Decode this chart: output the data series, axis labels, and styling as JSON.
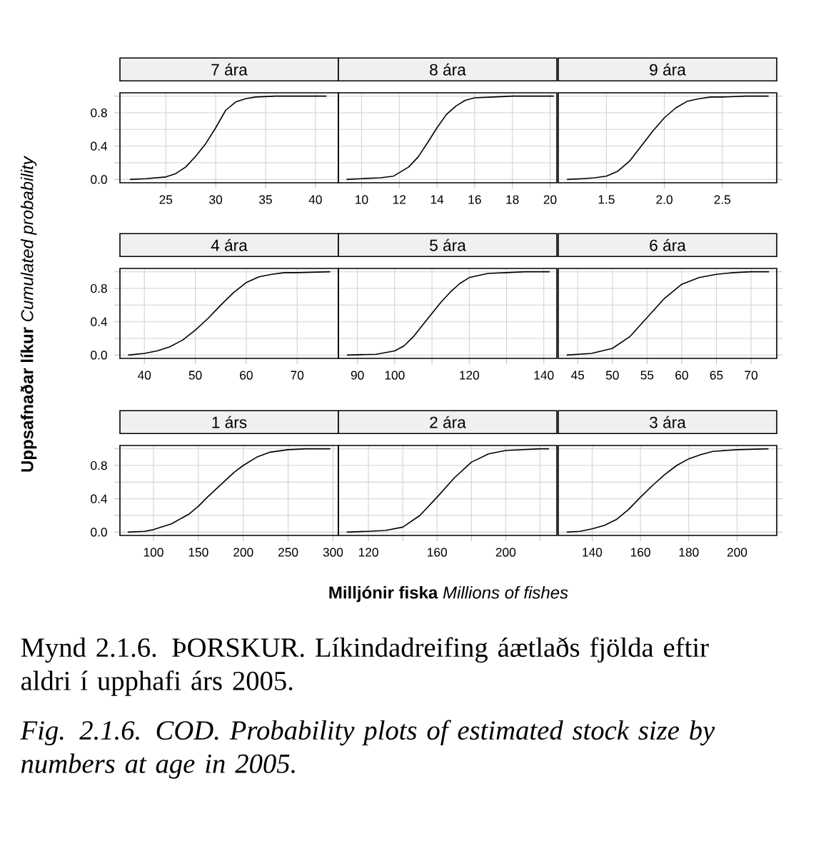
{
  "chart_data": [
    {
      "type": "line",
      "title": "7 ára",
      "xlim": [
        20.4,
        42.3
      ],
      "xticks": [
        25,
        30,
        35,
        40
      ],
      "ylim": [
        -0.04,
        1.04
      ],
      "yticks": [
        {
          "value": 0,
          "label": "0.0"
        },
        {
          "value": 0.2,
          "label": null
        },
        {
          "value": 0.4,
          "label": "0.4"
        },
        {
          "value": 0.6,
          "label": null
        },
        {
          "value": 0.8,
          "label": "0.8"
        },
        {
          "value": 1.0,
          "label": null
        }
      ],
      "grid": true,
      "series": [
        {
          "color": "#000000",
          "x": [
            21.4,
            23,
            25,
            26,
            27,
            28,
            29,
            30,
            31,
            32,
            33,
            34,
            36,
            38,
            41.1
          ],
          "values": [
            0,
            0.01,
            0.03,
            0.07,
            0.15,
            0.28,
            0.43,
            0.62,
            0.83,
            0.93,
            0.97,
            0.99,
            1,
            1,
            1
          ]
        }
      ]
    },
    {
      "type": "line",
      "title": "8 ára",
      "xlim": [
        8.77,
        20.36
      ],
      "xticks": [
        10,
        12,
        14,
        16,
        18,
        20
      ],
      "ylim": [
        -0.04,
        1.04
      ],
      "yticks": [
        {
          "value": 0,
          "label": null
        },
        {
          "value": 0.2,
          "label": null
        },
        {
          "value": 0.4,
          "label": null
        },
        {
          "value": 0.6,
          "label": null
        },
        {
          "value": 0.8,
          "label": null
        },
        {
          "value": 1.0,
          "label": null
        }
      ],
      "grid": true,
      "tick_labels": "x",
      "series": [
        {
          "color": "#000000",
          "x": [
            9.2,
            10,
            11,
            11.7,
            12.5,
            13,
            13.5,
            14,
            14.5,
            15,
            15.5,
            16,
            17,
            18,
            20.2
          ],
          "values": [
            0,
            0.01,
            0.02,
            0.04,
            0.15,
            0.27,
            0.44,
            0.62,
            0.78,
            0.88,
            0.95,
            0.98,
            0.99,
            1,
            1
          ]
        }
      ]
    },
    {
      "type": "line",
      "title": "9 ára",
      "xlim": [
        1.085,
        2.97
      ],
      "xticks": [
        1.5,
        {
          "value": 2,
          "label": "2.0"
        },
        2.5
      ],
      "ylim": [
        -0.04,
        1.04
      ],
      "yticks": [
        {
          "value": 0,
          "label": null
        },
        {
          "value": 0.2,
          "label": null
        },
        {
          "value": 0.4,
          "label": null
        },
        {
          "value": 0.6,
          "label": null
        },
        {
          "value": 0.8,
          "label": null
        },
        {
          "value": 1.0,
          "label": null
        }
      ],
      "grid": true,
      "tick_labels": "x",
      "series": [
        {
          "color": "#000000",
          "x": [
            1.16,
            1.3,
            1.4,
            1.5,
            1.6,
            1.7,
            1.8,
            1.9,
            2.0,
            2.1,
            2.2,
            2.3,
            2.4,
            2.5,
            2.7,
            2.9
          ],
          "values": [
            0,
            0.01,
            0.02,
            0.04,
            0.1,
            0.22,
            0.4,
            0.58,
            0.74,
            0.86,
            0.94,
            0.97,
            0.99,
            0.99,
            1,
            1
          ]
        }
      ]
    },
    {
      "type": "line",
      "title": "4 ára",
      "ylabel": "**Uppsafnaðar líkur** *Cumulated probability*",
      "xlim": [
        35.2,
        78.1
      ],
      "xticks": [
        40,
        50,
        60,
        70
      ],
      "ylim": [
        -0.04,
        1.04
      ],
      "yticks": [
        {
          "value": 0,
          "label": "0.0"
        },
        {
          "value": 0.2,
          "label": null
        },
        {
          "value": 0.4,
          "label": "0.4"
        },
        {
          "value": 0.6,
          "label": null
        },
        {
          "value": 0.8,
          "label": "0.8"
        },
        {
          "value": 1.0,
          "label": null
        }
      ],
      "grid": true,
      "series": [
        {
          "color": "#000000",
          "x": [
            36.8,
            40,
            42.5,
            45,
            47.5,
            50,
            52.5,
            55,
            57.5,
            60,
            62.5,
            65,
            67.5,
            70,
            76.5
          ],
          "values": [
            0,
            0.02,
            0.05,
            0.1,
            0.18,
            0.3,
            0.44,
            0.6,
            0.75,
            0.87,
            0.94,
            0.97,
            0.99,
            0.99,
            1
          ]
        }
      ]
    },
    {
      "type": "line",
      "title": "5 ára",
      "xlim": [
        84.9,
        143.5
      ],
      "xticks": [
        90,
        100,
        {
          "value": 110,
          "label": null
        },
        120,
        {
          "value": 130,
          "label": null
        },
        140
      ],
      "ylim": [
        -0.04,
        1.04
      ],
      "yticks": [
        {
          "value": 0,
          "label": null
        },
        {
          "value": 0.2,
          "label": null
        },
        {
          "value": 0.4,
          "label": null
        },
        {
          "value": 0.6,
          "label": null
        },
        {
          "value": 0.8,
          "label": null
        },
        {
          "value": 1.0,
          "label": null
        }
      ],
      "grid": true,
      "tick_labels": "x",
      "series": [
        {
          "color": "#000000",
          "x": [
            87.2,
            95,
            100,
            102.5,
            105,
            107.5,
            110,
            112.5,
            115,
            117.5,
            120,
            125,
            130,
            135,
            141.6
          ],
          "values": [
            0,
            0.01,
            0.05,
            0.11,
            0.22,
            0.36,
            0.5,
            0.64,
            0.76,
            0.86,
            0.93,
            0.98,
            0.99,
            1,
            1
          ]
        }
      ]
    },
    {
      "type": "line",
      "title": "6 ára",
      "xlim": [
        42.2,
        73.7
      ],
      "xticks": [
        45,
        50,
        55,
        60,
        65,
        70
      ],
      "ylim": [
        -0.04,
        1.04
      ],
      "yticks": [
        {
          "value": 0,
          "label": null
        },
        {
          "value": 0.2,
          "label": null
        },
        {
          "value": 0.4,
          "label": null
        },
        {
          "value": 0.6,
          "label": null
        },
        {
          "value": 0.8,
          "label": null
        },
        {
          "value": 1.0,
          "label": null
        }
      ],
      "grid": true,
      "tick_labels": "x",
      "series": [
        {
          "color": "#000000",
          "x": [
            43.4,
            47,
            50,
            52.5,
            55,
            57.5,
            60,
            62.5,
            65,
            67.5,
            70,
            72.6
          ],
          "values": [
            0,
            0.02,
            0.08,
            0.22,
            0.45,
            0.68,
            0.85,
            0.93,
            0.97,
            0.99,
            1,
            1
          ]
        }
      ]
    },
    {
      "type": "line",
      "title": "1 árs",
      "xlim": [
        62.6,
        306
      ],
      "xticks": [
        100,
        150,
        200,
        250,
        300
      ],
      "ylim": [
        -0.04,
        1.04
      ],
      "yticks": [
        {
          "value": 0,
          "label": "0.0"
        },
        {
          "value": 0.2,
          "label": null
        },
        {
          "value": 0.4,
          "label": "0.4"
        },
        {
          "value": 0.6,
          "label": null
        },
        {
          "value": 0.8,
          "label": "0.8"
        },
        {
          "value": 1.0,
          "label": null
        }
      ],
      "grid": true,
      "series": [
        {
          "color": "#000000",
          "x": [
            71.3,
            90,
            100,
            120,
            140,
            150,
            160,
            175,
            190,
            200,
            215,
            230,
            250,
            270,
            297
          ],
          "values": [
            0,
            0.01,
            0.03,
            0.1,
            0.22,
            0.31,
            0.42,
            0.57,
            0.72,
            0.8,
            0.9,
            0.96,
            0.99,
            1,
            1
          ]
        }
      ]
    },
    {
      "type": "line",
      "title": "2 ára",
      "xlabel": "**Milljónir fiska** *Millions of fishes*",
      "annotations": [
        "Mynd 2.1.6. ÞORSKUR.  Líkindadreifing áætlaðs fjölda eftir aldri í upphafi árs 2005.",
        "Fig. 2.1.6. COD.  Probability plots of estimated stock size by numbers at age in 2005."
      ],
      "xlim": [
        102.5,
        229.8
      ],
      "xticks": [
        120,
        {
          "value": 140,
          "label": null
        },
        160,
        {
          "value": 180,
          "label": null
        },
        200,
        {
          "value": 220,
          "label": null
        }
      ],
      "ylim": [
        -0.04,
        1.04
      ],
      "yticks": [
        {
          "value": 0,
          "label": null
        },
        {
          "value": 0.2,
          "label": null
        },
        {
          "value": 0.4,
          "label": null
        },
        {
          "value": 0.6,
          "label": null
        },
        {
          "value": 0.8,
          "label": null
        },
        {
          "value": 1.0,
          "label": null
        }
      ],
      "grid": true,
      "tick_labels": "x",
      "series": [
        {
          "color": "#000000",
          "x": [
            107.4,
            120,
            130,
            140,
            150,
            160,
            170,
            180,
            190,
            200,
            210,
            220,
            225.2
          ],
          "values": [
            0,
            0.01,
            0.02,
            0.06,
            0.2,
            0.42,
            0.65,
            0.84,
            0.94,
            0.98,
            0.99,
            1,
            1
          ]
        }
      ]
    },
    {
      "type": "line",
      "title": "3 ára",
      "xlim": [
        126,
        216.4
      ],
      "xticks": [
        140,
        160,
        180,
        200
      ],
      "ylim": [
        -0.04,
        1.04
      ],
      "yticks": [
        {
          "value": 0,
          "label": null
        },
        {
          "value": 0.2,
          "label": null
        },
        {
          "value": 0.4,
          "label": null
        },
        {
          "value": 0.6,
          "label": null
        },
        {
          "value": 0.8,
          "label": null
        },
        {
          "value": 1.0,
          "label": null
        }
      ],
      "grid": true,
      "tick_labels": "x",
      "series": [
        {
          "color": "#000000",
          "x": [
            129.5,
            135,
            140,
            145,
            150,
            155,
            160,
            165,
            170,
            175,
            180,
            185,
            190,
            200,
            213
          ],
          "values": [
            0,
            0.01,
            0.04,
            0.08,
            0.15,
            0.27,
            0.42,
            0.56,
            0.69,
            0.8,
            0.88,
            0.93,
            0.97,
            0.99,
            1
          ]
        }
      ]
    }
  ]
}
